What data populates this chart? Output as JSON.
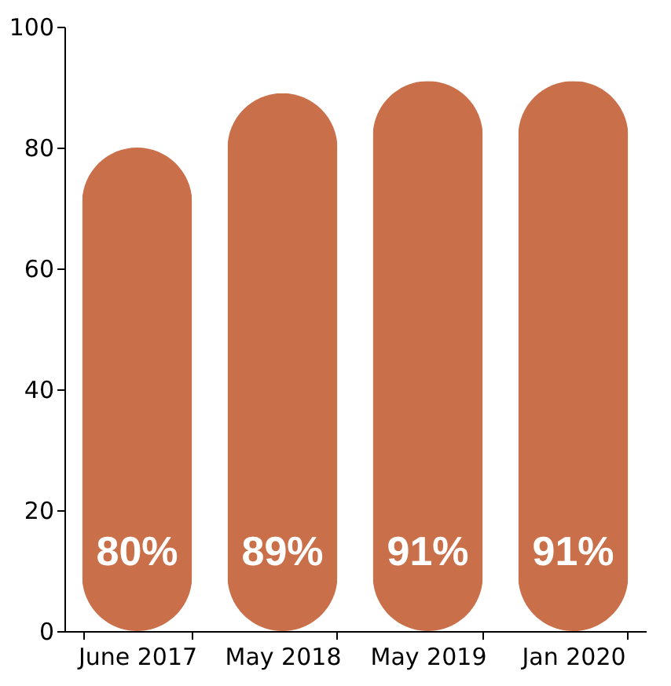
{
  "chart_data": {
    "type": "bar",
    "categories": [
      "June 2017",
      "May 2018",
      "May 2019",
      "Jan 2020"
    ],
    "values": [
      80,
      89,
      91,
      91
    ],
    "value_labels": [
      "80%",
      "89%",
      "91%",
      "91%"
    ],
    "color": "#c9704a",
    "ylim": [
      0,
      100
    ],
    "yticks": [
      0,
      20,
      40,
      60,
      80,
      100
    ],
    "grid": false
  }
}
